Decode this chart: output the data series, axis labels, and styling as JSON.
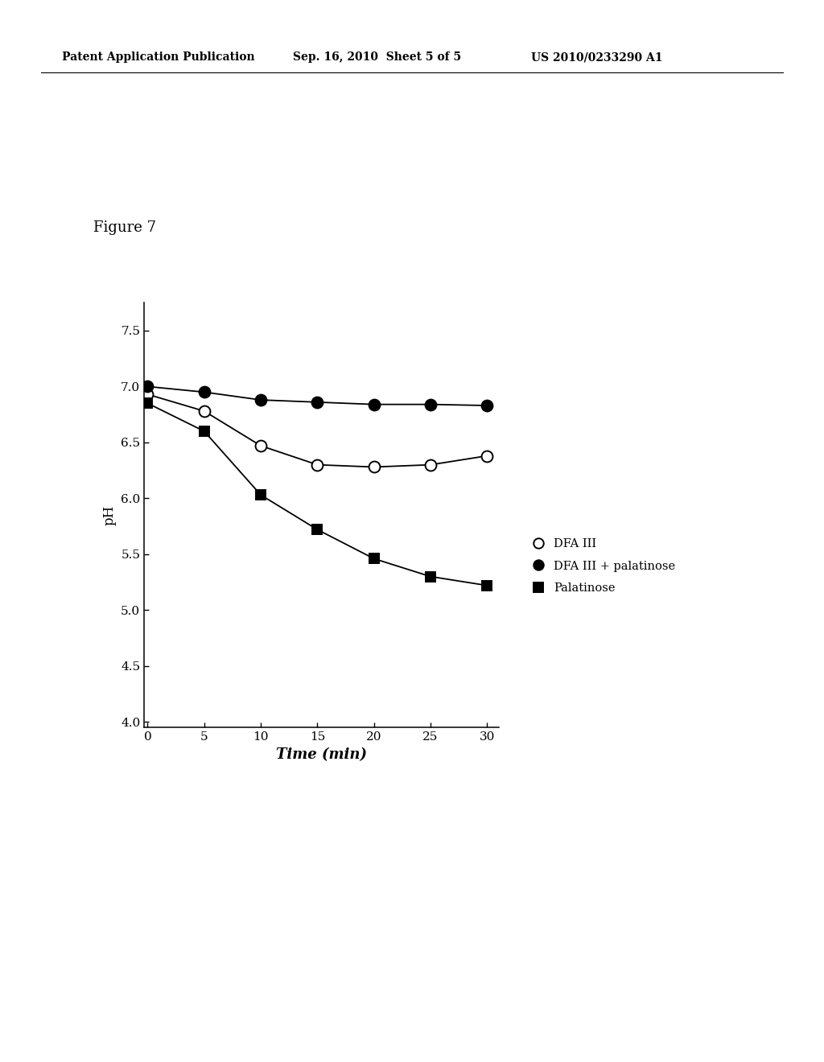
{
  "xlabel": "Time (min)",
  "ylabel": "pH",
  "xlim": [
    -0.3,
    31
  ],
  "ylim": [
    3.95,
    7.75
  ],
  "yticks": [
    4.0,
    4.5,
    5.0,
    5.5,
    6.0,
    6.5,
    7.0,
    7.5
  ],
  "xticks": [
    0,
    5,
    10,
    15,
    20,
    25,
    30
  ],
  "series": [
    {
      "label": "DFA III",
      "x": [
        0,
        5,
        10,
        15,
        20,
        25,
        30
      ],
      "y": [
        6.93,
        6.78,
        6.47,
        6.3,
        6.28,
        6.3,
        6.38
      ],
      "marker": "o",
      "markerfacecolor": "white",
      "markeredgecolor": "black",
      "color": "black",
      "markersize": 10,
      "linewidth": 1.3
    },
    {
      "label": "DFA III + palatinose",
      "x": [
        0,
        5,
        10,
        15,
        20,
        25,
        30
      ],
      "y": [
        7.0,
        6.95,
        6.88,
        6.86,
        6.84,
        6.84,
        6.83
      ],
      "marker": "o",
      "markerfacecolor": "black",
      "markeredgecolor": "black",
      "color": "black",
      "markersize": 10,
      "linewidth": 1.3
    },
    {
      "label": "Palatinose",
      "x": [
        0,
        5,
        10,
        15,
        20,
        25,
        30
      ],
      "y": [
        6.85,
        6.6,
        6.03,
        5.72,
        5.46,
        5.3,
        5.22
      ],
      "marker": "s",
      "markerfacecolor": "black",
      "markeredgecolor": "black",
      "color": "black",
      "markersize": 9,
      "linewidth": 1.3
    }
  ],
  "legend_entries": [
    {
      "label": "DFA III",
      "marker": "o",
      "markerfacecolor": "white",
      "markeredgecolor": "black"
    },
    {
      "label": "DFA III + palatinose",
      "marker": "o",
      "markerfacecolor": "black",
      "markeredgecolor": "black"
    },
    {
      "label": "Palatinose",
      "marker": "s",
      "markerfacecolor": "black",
      "markeredgecolor": "black"
    }
  ],
  "background_color": "#ffffff",
  "figure_label": "Figure 7",
  "header_left": "Patent Application Publication",
  "header_center": "Sep. 16, 2010  Sheet 5 of 5",
  "header_right": "US 2010/0233290 A1"
}
